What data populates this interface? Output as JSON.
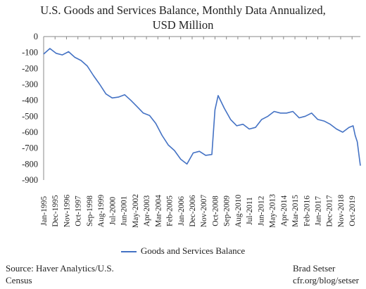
{
  "chart_data": {
    "type": "line",
    "title_line1": "U.S. Goods and Services Balance, Monthly Data Annualized,",
    "title_line2": "USD Million",
    "xlabel": "",
    "ylabel": "",
    "ylim": [
      -900,
      0
    ],
    "yticks": [
      0,
      -100,
      -200,
      -300,
      -400,
      -500,
      -600,
      -700,
      -800,
      -900
    ],
    "x_tick_labels": [
      "Jan-1995",
      "Dec-1995",
      "Nov-1996",
      "Oct-1997",
      "Sep-1998",
      "Aug-1999",
      "Jul-2000",
      "Jun-2001",
      "May-2002",
      "Apr-2003",
      "Mar-2004",
      "Feb-2005",
      "Jan-2006",
      "Dec-2006",
      "Nov-2007",
      "Oct-2008",
      "Sep-2009",
      "Aug-2010",
      "Jul-2011",
      "Jun-2012",
      "May-2013",
      "Apr-2014",
      "Mar-2015",
      "Feb-2016",
      "Jan-2017",
      "Dec-2017",
      "Nov-2018",
      "Oct-2019"
    ],
    "x_range": [
      "Jan-1995",
      "Jun-2020"
    ],
    "grid": false,
    "legend_position": "bottom",
    "series": [
      {
        "name": "Goods and Services Balance",
        "color": "#4472c4",
        "x": [
          "Jan-1995",
          "Jul-1995",
          "Jan-1996",
          "Jul-1996",
          "Jan-1997",
          "Jul-1997",
          "Jan-1998",
          "Jul-1998",
          "Jan-1999",
          "Jul-1999",
          "Jan-2000",
          "Jul-2000",
          "Jan-2001",
          "Jul-2001",
          "Jan-2002",
          "Jul-2002",
          "Jan-2003",
          "Jul-2003",
          "Jan-2004",
          "Jul-2004",
          "Jan-2005",
          "Jul-2005",
          "Jan-2006",
          "Jul-2006",
          "Jan-2007",
          "Jul-2007",
          "Jan-2008",
          "Jul-2008",
          "Oct-2008",
          "Jan-2009",
          "Jul-2009",
          "Jan-2010",
          "Jul-2010",
          "Jan-2011",
          "Jul-2011",
          "Jan-2012",
          "Jul-2012",
          "Jan-2013",
          "Jul-2013",
          "Jan-2014",
          "Jul-2014",
          "Jan-2015",
          "Jul-2015",
          "Jan-2016",
          "Jul-2016",
          "Jan-2017",
          "Jul-2017",
          "Jan-2018",
          "Jul-2018",
          "Jan-2019",
          "Jul-2019",
          "Nov-2019",
          "Jan-2020",
          "Mar-2020",
          "May-2020",
          "Jun-2020"
        ],
        "values": [
          -110,
          -75,
          -105,
          -115,
          -95,
          -130,
          -150,
          -185,
          -245,
          -300,
          -360,
          -385,
          -380,
          -365,
          -400,
          -440,
          -480,
          -495,
          -545,
          -620,
          -680,
          -715,
          -770,
          -800,
          -730,
          -720,
          -745,
          -740,
          -460,
          -370,
          -450,
          -520,
          -560,
          -550,
          -580,
          -570,
          -520,
          -500,
          -470,
          -480,
          -480,
          -470,
          -510,
          -500,
          -480,
          -520,
          -530,
          -550,
          -580,
          -600,
          -570,
          -560,
          -620,
          -660,
          -760,
          -810
        ]
      }
    ]
  },
  "legend": {
    "label": "Goods and Services Balance"
  },
  "footer": {
    "source_line1": "Source: Haver Analytics/U.S.",
    "source_line2": "Census",
    "author_line1": "Brad Setser",
    "author_line2": "cfr.org/blog/setser"
  }
}
